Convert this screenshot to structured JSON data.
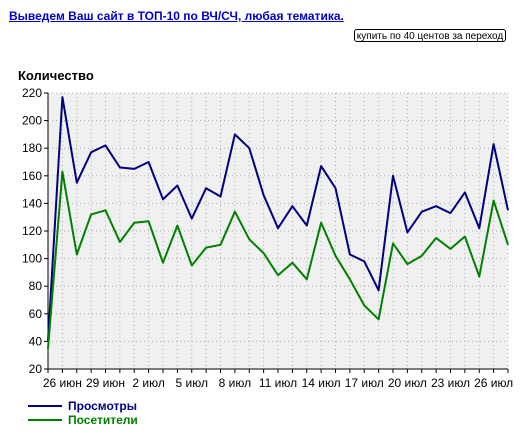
{
  "ad": {
    "link_text": "Выведем Ваш сайт в ТОП-10 по ВЧ/СЧ, любая тематика.",
    "button_label": "купить по 40 центов за переход"
  },
  "colors": {
    "views": "#000080",
    "visitors": "#008000",
    "plot_bg": "#f0f0f0",
    "grid": "#aaaaaa"
  },
  "chart_data": {
    "type": "line",
    "ylabel": "Количество",
    "ylim": [
      20,
      220
    ],
    "yticks": [
      20,
      40,
      60,
      80,
      100,
      120,
      140,
      160,
      180,
      200,
      220
    ],
    "grid": true,
    "legend_placement": "bottom-left",
    "x_tick_labels": [
      "26 июн",
      "29 июн",
      "2 июл",
      "5 июл",
      "8 июл",
      "11 июл",
      "14 июл",
      "17 июл",
      "20 июл",
      "23 июл",
      "26 июл"
    ],
    "x": [
      "25 июн",
      "26 июн",
      "27 июн",
      "28 июн",
      "29 июн",
      "30 июн",
      "1 июл",
      "2 июл",
      "3 июл",
      "4 июл",
      "5 июл",
      "6 июл",
      "7 июл",
      "8 июл",
      "9 июл",
      "10 июл",
      "11 июл",
      "12 июл",
      "13 июл",
      "14 июл",
      "15 июл",
      "16 июл",
      "17 июл",
      "18 июл",
      "19 июл",
      "20 июл",
      "21 июл",
      "22 июл",
      "23 июл",
      "24 июл",
      "25 июл",
      "26 июл",
      "27 июл"
    ],
    "series": [
      {
        "name": "Просмотры",
        "values": [
          40,
          217,
          155,
          177,
          182,
          166,
          165,
          170,
          143,
          153,
          129,
          151,
          145,
          190,
          180,
          146,
          122,
          138,
          124,
          167,
          151,
          103,
          98,
          77,
          160,
          119,
          134,
          138,
          133,
          148,
          122,
          183,
          135
        ]
      },
      {
        "name": "Посетители",
        "values": [
          35,
          163,
          103,
          132,
          135,
          112,
          126,
          127,
          97,
          124,
          95,
          108,
          110,
          134,
          114,
          104,
          88,
          97,
          85,
          126,
          102,
          85,
          66,
          56,
          111,
          96,
          102,
          115,
          107,
          116,
          87,
          142,
          110
        ]
      }
    ]
  }
}
